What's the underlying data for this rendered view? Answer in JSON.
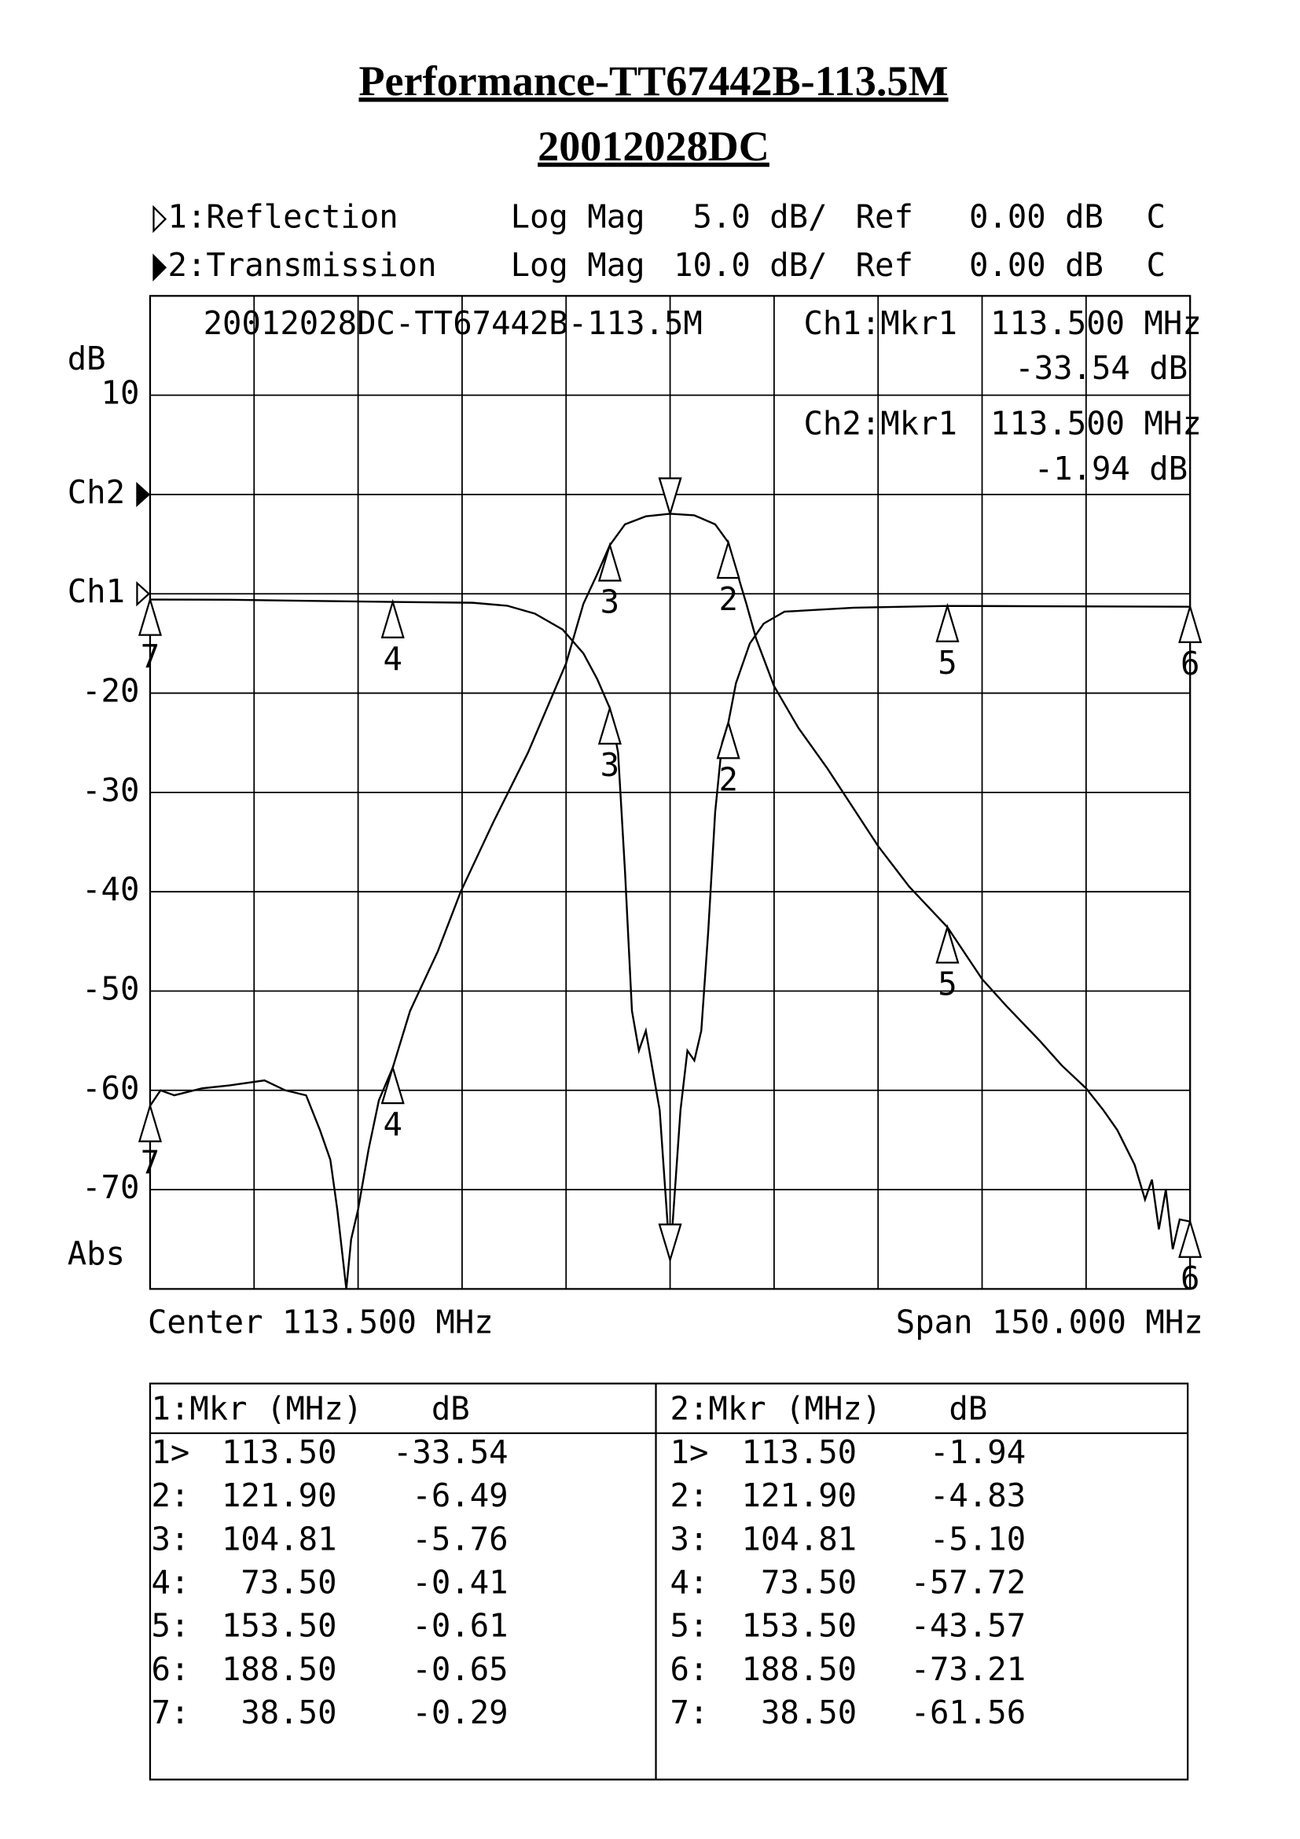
{
  "title": "Performance-TT67442B-113.5M",
  "subtitle": "20012028DC",
  "chart_data": {
    "type": "line",
    "channel_headers": [
      [
        "Log Mag",
        "5.0 dB/",
        "Ref",
        "0.00 dB",
        "C"
      ],
      [
        "Log Mag",
        "10.0 dB/",
        "Ref",
        "0.00 dB",
        "C"
      ]
    ],
    "plot_title": "20012028DC-TT67442B-113.5M",
    "y_unit": "dB",
    "y_mode": "Abs",
    "x_label_left": "Center 113.500 MHz",
    "x_label_right": "Span 150.000 MHz",
    "xlim": [
      38.5,
      188.5
    ],
    "xticks": [
      38.5,
      53.5,
      68.5,
      83.5,
      98.5,
      113.5,
      128.5,
      143.5,
      158.5,
      173.5,
      188.5
    ],
    "xtick_labels": false,
    "ylim": [
      -80,
      20
    ],
    "yticks": [
      10,
      {
        "value": 0,
        "label": "Ch2"
      },
      -20,
      -30,
      -40,
      -50,
      -60,
      -70
    ],
    "y2lim": [
      -35,
      15
    ],
    "y2ticks": [
      {
        "value": 0,
        "label": "Ch1"
      }
    ],
    "grid": true,
    "marker_readouts": [
      [
        "Ch1:Mkr1",
        "113.500 MHz",
        "-33.54 dB"
      ],
      [
        "Ch2:Mkr1",
        "113.500 MHz",
        "-1.94 dB"
      ]
    ],
    "series": [
      {
        "name": "1:Reflection",
        "axis": "y2",
        "color": "#000000",
        "x": [
          38.5,
          50,
          60,
          73.5,
          85,
          90,
          94,
          98,
          101,
          103,
          104.81,
          106,
          107,
          108,
          109,
          110,
          111,
          112,
          113.5,
          115,
          116,
          117,
          118,
          119,
          120,
          121,
          121.9,
          123,
          125,
          127,
          130,
          140,
          153.5,
          170,
          188.5
        ],
        "values": [
          -0.29,
          -0.3,
          -0.35,
          -0.41,
          -0.45,
          -0.6,
          -1.0,
          -1.8,
          -3.0,
          -4.3,
          -5.76,
          -8,
          -14,
          -21,
          -23,
          -22,
          -24,
          -26,
          -33.54,
          -26,
          -23,
          -23.5,
          -22,
          -17,
          -11,
          -7.5,
          -6.49,
          -4.5,
          -2.5,
          -1.5,
          -0.9,
          -0.7,
          -0.61,
          -0.63,
          -0.65
        ],
        "markers": {
          "names": [
            "1",
            "2",
            "3",
            "4",
            "5",
            "6",
            "7"
          ],
          "row_labels": [
            "1>",
            "2:",
            "3:",
            "4:",
            "5:",
            "6:",
            "7:"
          ],
          "x": [
            113.5,
            121.9,
            104.81,
            73.5,
            153.5,
            188.5,
            38.5
          ],
          "x_labels": [
            "113.50",
            "121.90",
            "104.81",
            "73.50",
            "153.50",
            "188.50",
            "38.50"
          ],
          "values": [
            -33.54,
            -6.49,
            -5.76,
            -0.41,
            -0.61,
            -0.65,
            -0.29
          ],
          "value_labels": [
            "-33.54",
            "-6.49",
            "-5.76",
            "-0.41",
            "-0.61",
            "-0.65",
            "-0.29"
          ]
        }
      },
      {
        "name": "2:Transmission",
        "color": "#000000",
        "x": [
          38.5,
          40,
          42,
          46,
          50,
          55,
          58,
          61,
          63,
          64.5,
          65.5,
          66.8,
          67.5,
          68.5,
          70,
          71.5,
          73.5,
          76,
          78,
          80,
          83.3,
          88,
          93,
          98.5,
          101,
          103,
          104.81,
          107,
          110,
          113.5,
          117,
          120,
          121.9,
          123,
          124.5,
          125.9,
          128.5,
          132,
          136.2,
          143.5,
          148,
          153.5,
          158.5,
          162,
          166.8,
          170,
          173.5,
          176,
          178,
          180.5,
          182,
          183,
          184,
          185,
          186,
          187,
          188.5
        ],
        "values": [
          -61.56,
          -60,
          -60.5,
          -59.8,
          -59.5,
          -59,
          -60,
          -60.5,
          -64,
          -67,
          -72,
          -80,
          -75,
          -72,
          -66,
          -61,
          -57.72,
          -52,
          -49,
          -46,
          -40,
          -33,
          -26,
          -17,
          -11,
          -8,
          -5.1,
          -3,
          -2.2,
          -1.94,
          -2.1,
          -3,
          -4.83,
          -7.5,
          -11,
          -14.5,
          -19.3,
          -23.5,
          -27.6,
          -35.4,
          -39.5,
          -43.57,
          -48.8,
          -51.5,
          -55,
          -57.5,
          -59.8,
          -62,
          -64,
          -67.5,
          -71,
          -69,
          -74,
          -70,
          -76,
          -73,
          -73.21
        ],
        "markers": {
          "names": [
            "1",
            "2",
            "3",
            "4",
            "5",
            "6",
            "7"
          ],
          "row_labels": [
            "1>",
            "2:",
            "3:",
            "4:",
            "5:",
            "6:",
            "7:"
          ],
          "x": [
            113.5,
            121.9,
            104.81,
            73.5,
            153.5,
            188.5,
            38.5
          ],
          "x_labels": [
            "113.50",
            "121.90",
            "104.81",
            "73.50",
            "153.50",
            "188.50",
            "38.50"
          ],
          "values": [
            -1.94,
            -4.83,
            -5.1,
            -57.72,
            -43.57,
            -73.21,
            -61.56
          ],
          "value_labels": [
            "-1.94",
            "-4.83",
            "-5.10",
            "-57.72",
            "-43.57",
            "-73.21",
            "-61.56"
          ]
        }
      }
    ]
  },
  "table": {
    "headers": [
      [
        "1:Mkr (MHz)",
        "dB"
      ],
      [
        "2:Mkr (MHz)",
        "dB"
      ]
    ]
  }
}
